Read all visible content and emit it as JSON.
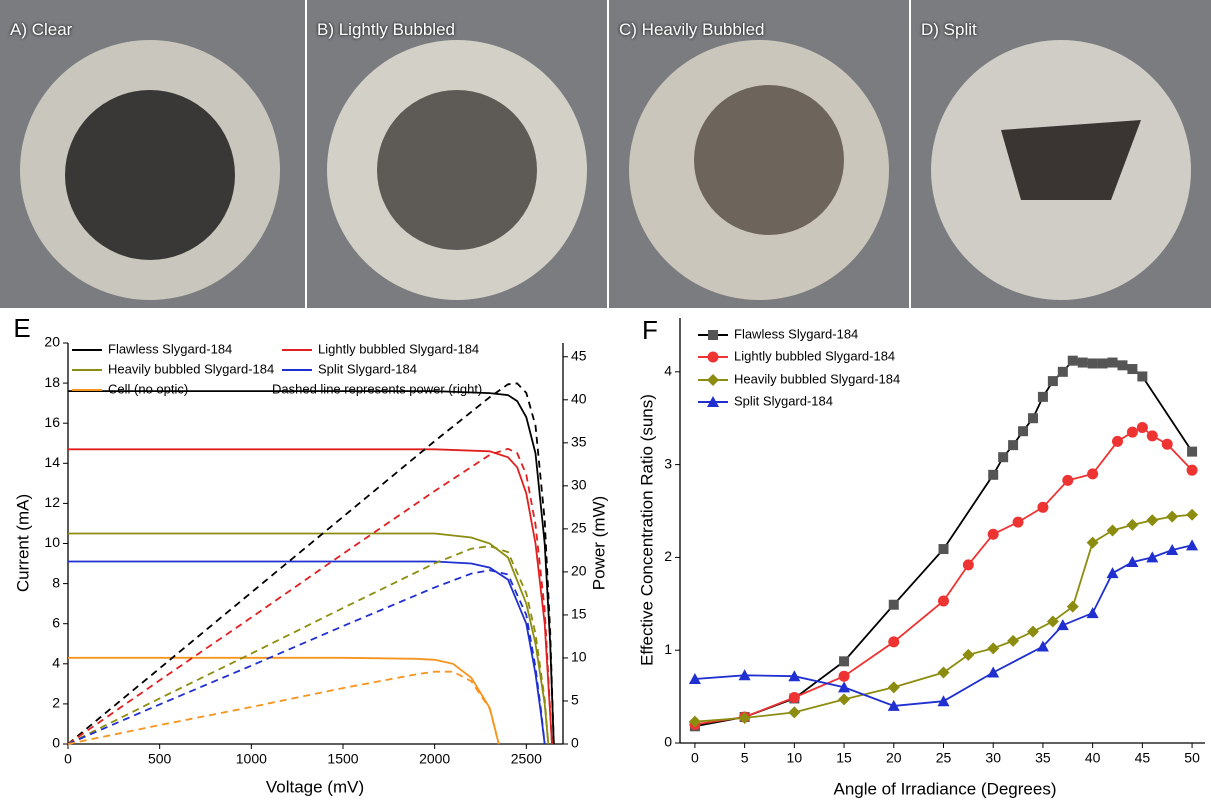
{
  "photos": [
    {
      "label": "A) Clear"
    },
    {
      "label": "B) Lightly Bubbled"
    },
    {
      "label": "C) Heavily Bubbled"
    },
    {
      "label": "D) Split"
    }
  ],
  "chart_data": [
    {
      "type": "line",
      "panel": "E",
      "xlabel": "Voltage (mV)",
      "ylabel": "Current (mA)",
      "y2label": "Power (mW)",
      "annotation": "Dashed line represents power (right)",
      "xlim": [
        0,
        2700
      ],
      "xticks": [
        0,
        500,
        1000,
        1500,
        2000,
        2500
      ],
      "ylim": [
        0,
        20
      ],
      "yticks": [
        0,
        2,
        4,
        6,
        8,
        10,
        12,
        14,
        16,
        18,
        20
      ],
      "y2lim": [
        0,
        46.6
      ],
      "y2ticks": [
        0,
        5,
        10,
        15,
        20,
        25,
        30,
        35,
        40,
        45
      ],
      "series": [
        {
          "name": "Flawless Slygard-184",
          "color": "#000000",
          "x": [
            0,
            500,
            1000,
            1500,
            2000,
            2300,
            2400,
            2450,
            2500,
            2550,
            2600,
            2630,
            2650
          ],
          "values": [
            17.6,
            17.6,
            17.6,
            17.6,
            17.6,
            17.5,
            17.4,
            17.1,
            16.3,
            14.5,
            10,
            5,
            0
          ]
        },
        {
          "name": "Lightly bubbled Slygard-184",
          "color": "#e02020",
          "x": [
            0,
            500,
            1000,
            1500,
            2000,
            2300,
            2400,
            2450,
            2500,
            2550,
            2600,
            2640
          ],
          "values": [
            14.7,
            14.7,
            14.7,
            14.7,
            14.7,
            14.6,
            14.3,
            13.8,
            12.5,
            10,
            6,
            0
          ]
        },
        {
          "name": "Heavily bubbled Slygard-184",
          "color": "#8c8c10",
          "x": [
            0,
            500,
            1000,
            1500,
            2000,
            2200,
            2300,
            2400,
            2500,
            2550,
            2600,
            2620
          ],
          "values": [
            10.5,
            10.5,
            10.5,
            10.5,
            10.5,
            10.3,
            10,
            9.3,
            7,
            5,
            2,
            0
          ]
        },
        {
          "name": "Split Slygard-184",
          "color": "#1f2fd0",
          "x": [
            0,
            500,
            1000,
            1500,
            2000,
            2200,
            2300,
            2400,
            2500,
            2550,
            2580,
            2600
          ],
          "values": [
            9.1,
            9.1,
            9.1,
            9.1,
            9.1,
            9,
            8.8,
            8.2,
            6,
            3.5,
            1.5,
            0
          ]
        },
        {
          "name": "Cell (no optic)",
          "color": "#f7941d",
          "x": [
            0,
            500,
            1000,
            1500,
            1900,
            2000,
            2100,
            2200,
            2300,
            2350
          ],
          "values": [
            4.3,
            4.3,
            4.3,
            4.3,
            4.25,
            4.2,
            4,
            3.3,
            1.8,
            0
          ]
        },
        {
          "color": "#000000",
          "dashed": true,
          "axis": "y2",
          "x": [
            0,
            500,
            1000,
            1500,
            2000,
            2300,
            2400,
            2450,
            2500,
            2550,
            2600,
            2630,
            2650
          ],
          "values": [
            0,
            8.8,
            17.6,
            26.4,
            35.2,
            40.3,
            41.8,
            41.9,
            40.8,
            37,
            26,
            13,
            0
          ]
        },
        {
          "color": "#e02020",
          "dashed": true,
          "axis": "y2",
          "x": [
            0,
            500,
            1000,
            1500,
            2000,
            2300,
            2400,
            2450,
            2500,
            2550,
            2600,
            2640
          ],
          "values": [
            0,
            7.4,
            14.7,
            22.1,
            29.4,
            33.6,
            34.3,
            33.8,
            31.3,
            25.5,
            15.6,
            0
          ]
        },
        {
          "color": "#8c8c10",
          "dashed": true,
          "axis": "y2",
          "x": [
            0,
            500,
            1000,
            1500,
            2000,
            2200,
            2300,
            2400,
            2500,
            2550,
            2600,
            2620
          ],
          "values": [
            0,
            5.3,
            10.5,
            15.8,
            21,
            22.7,
            23,
            22.3,
            17.5,
            12.8,
            5.2,
            0
          ]
        },
        {
          "color": "#1f2fd0",
          "dashed": true,
          "axis": "y2",
          "x": [
            0,
            500,
            1000,
            1500,
            2000,
            2200,
            2300,
            2400,
            2500,
            2550,
            2580,
            2600
          ],
          "values": [
            0,
            4.6,
            9.1,
            13.7,
            18.2,
            19.8,
            20.2,
            19.7,
            15,
            8.9,
            3.9,
            0
          ]
        },
        {
          "color": "#f7941d",
          "dashed": true,
          "axis": "y2",
          "x": [
            0,
            500,
            1000,
            1500,
            1900,
            2000,
            2100,
            2200,
            2300,
            2350
          ],
          "values": [
            0,
            2.2,
            4.3,
            6.5,
            8.1,
            8.4,
            8.4,
            7.3,
            4.1,
            0
          ]
        }
      ]
    },
    {
      "type": "line",
      "panel": "F",
      "xlabel": "Angle of Irradiance (Degrees)",
      "ylabel": "Effective Concentration Ratio (suns)",
      "xlim": [
        -1.5,
        51.3
      ],
      "xticks": [
        0,
        5,
        10,
        15,
        20,
        25,
        30,
        35,
        40,
        45,
        50
      ],
      "ylim": [
        0,
        4.58
      ],
      "yticks": [
        0,
        1,
        2,
        3,
        4
      ],
      "series": [
        {
          "name": "Flawless Slygard-184",
          "color": "#000000",
          "marker": "square",
          "marker_color": "#555555",
          "x": [
            0,
            5,
            10,
            15,
            20,
            25,
            30,
            31,
            32,
            33,
            34,
            35,
            36,
            37,
            38,
            39,
            40,
            41,
            42,
            43,
            44,
            45,
            50
          ],
          "values": [
            0.18,
            0.28,
            0.48,
            0.88,
            1.49,
            2.09,
            2.89,
            3.08,
            3.21,
            3.36,
            3.5,
            3.73,
            3.9,
            4.0,
            4.12,
            4.1,
            4.09,
            4.09,
            4.1,
            4.07,
            4.03,
            3.95,
            3.14
          ]
        },
        {
          "name": "Lightly bubbled Slygard-184",
          "color": "#ee3333",
          "marker": "circle",
          "marker_color": "#ee3333",
          "x": [
            0,
            5,
            10,
            15,
            20,
            25,
            27.5,
            30,
            32.5,
            35,
            37.5,
            40,
            42.5,
            44,
            45,
            46,
            47.5,
            50
          ],
          "values": [
            0.2,
            0.28,
            0.49,
            0.72,
            1.09,
            1.53,
            1.92,
            2.25,
            2.38,
            2.54,
            2.83,
            2.9,
            3.25,
            3.35,
            3.4,
            3.31,
            3.22,
            2.94
          ]
        },
        {
          "name": "Heavily bubbled Slygard-184",
          "color": "#8c8c10",
          "marker": "diamond",
          "marker_color": "#8c8c10",
          "x": [
            0,
            5,
            10,
            15,
            20,
            25,
            27.5,
            30,
            32,
            34,
            36,
            38,
            40,
            42,
            44,
            46,
            48,
            50
          ],
          "values": [
            0.23,
            0.27,
            0.33,
            0.47,
            0.6,
            0.76,
            0.95,
            1.02,
            1.1,
            1.2,
            1.31,
            1.47,
            2.16,
            2.29,
            2.35,
            2.4,
            2.44,
            2.46
          ]
        },
        {
          "name": "Split Slygard-184",
          "color": "#1f2fd0",
          "marker": "triangle",
          "marker_color": "#1f2fd0",
          "x": [
            0,
            5,
            10,
            15,
            20,
            25,
            30,
            35,
            37,
            40,
            42,
            44,
            46,
            48,
            50
          ],
          "values": [
            0.69,
            0.73,
            0.72,
            0.6,
            0.4,
            0.45,
            0.76,
            1.04,
            1.27,
            1.4,
            1.83,
            1.95,
            2.0,
            2.08,
            2.13
          ]
        }
      ]
    }
  ]
}
